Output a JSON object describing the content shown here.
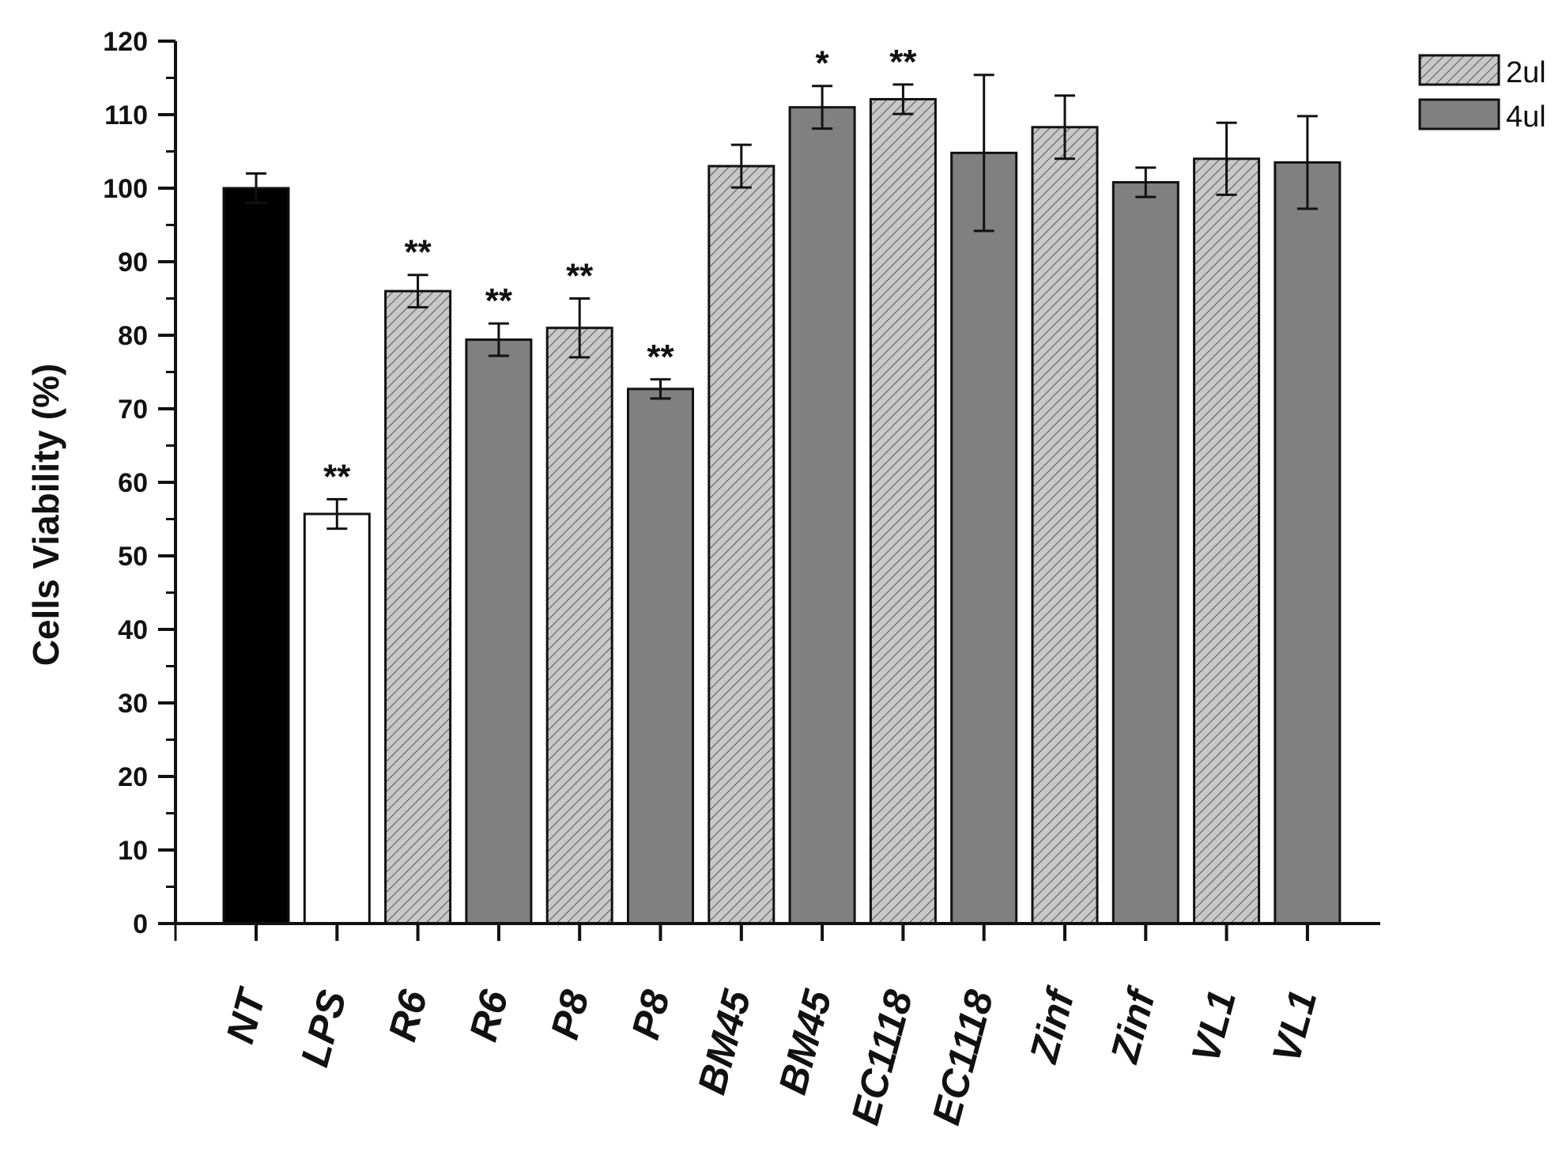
{
  "chart_data": {
    "type": "bar",
    "ylabel": "Cells Viability (%)",
    "xlabel": "",
    "ylim": [
      0,
      120
    ],
    "yticks": [
      0,
      10,
      20,
      30,
      40,
      50,
      60,
      70,
      80,
      90,
      100,
      110,
      120
    ],
    "grid": false,
    "legend_position": "top-right",
    "legend": [
      {
        "name": "2ul",
        "style": "hatched",
        "color": "#c8c8c8"
      },
      {
        "name": "4ul",
        "style": "solid",
        "color": "#808080"
      }
    ],
    "categories": [
      "NT",
      "LPS",
      "R6",
      "R6",
      "P8",
      "P8",
      "BM45",
      "BM45",
      "EC1118",
      "EC1118",
      "Zinf",
      "Zinf",
      "VL1",
      "VL1"
    ],
    "values": [
      100,
      55.7,
      86,
      79.4,
      81,
      72.7,
      103,
      111,
      112.1,
      104.8,
      108.3,
      100.8,
      104,
      103.5
    ],
    "errors": [
      2,
      2,
      2.2,
      2.2,
      4,
      1.3,
      2.9,
      2.9,
      2,
      10.6,
      4.3,
      2,
      4.9,
      6.3
    ],
    "significance": [
      "",
      "**",
      "**",
      "**",
      "**",
      "**",
      "",
      "*",
      "**",
      "",
      "",
      "",
      "",
      ""
    ],
    "bar_styles": [
      "black",
      "white",
      "hatched",
      "solid",
      "hatched",
      "solid",
      "hatched",
      "solid",
      "hatched",
      "solid",
      "hatched",
      "solid",
      "hatched",
      "solid"
    ],
    "colors": {
      "black": "#000000",
      "white": "#ffffff",
      "hatched": "#c8c8c8",
      "solid": "#808080",
      "axis": "#111111"
    }
  }
}
